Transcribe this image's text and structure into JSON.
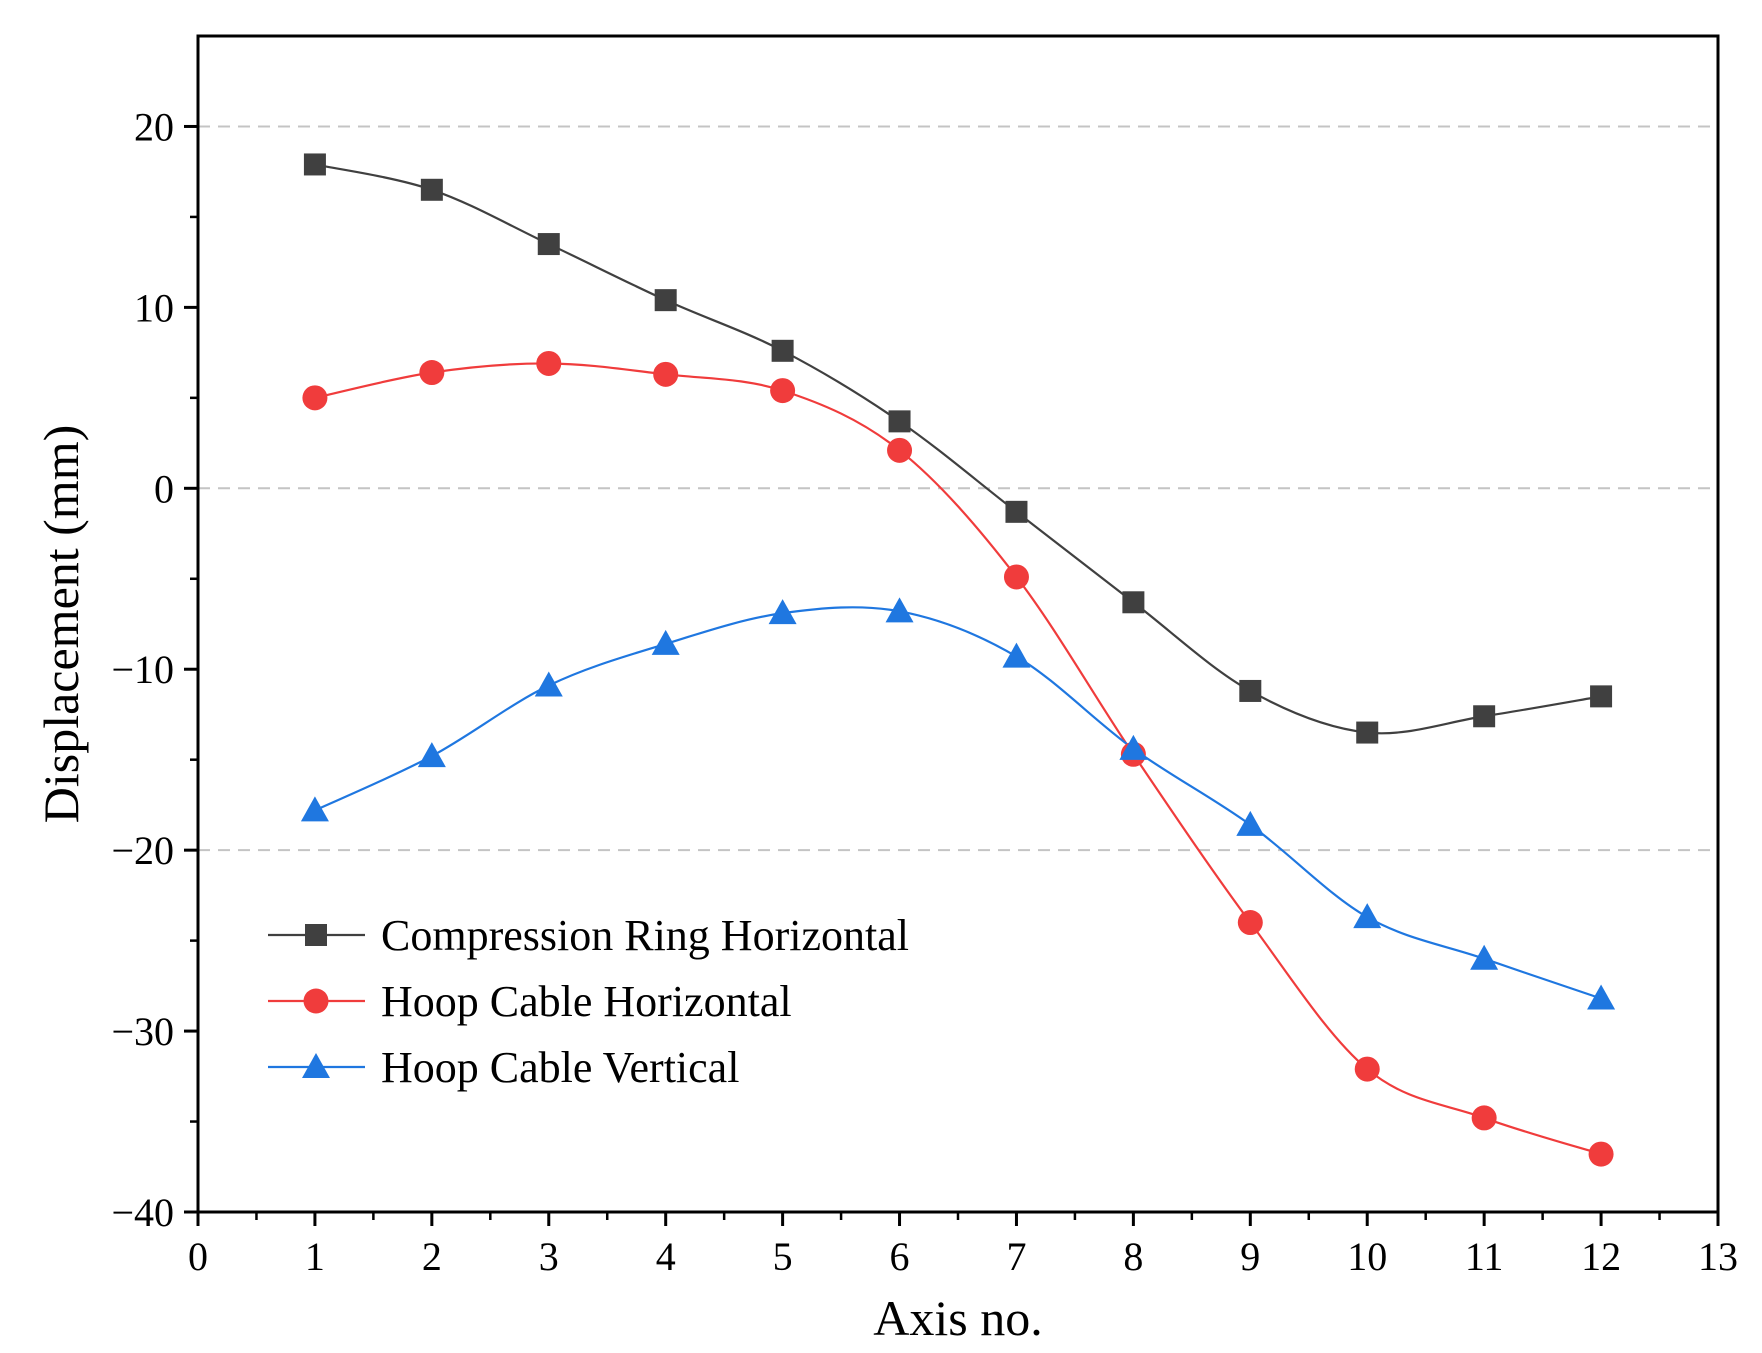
{
  "chart_data": {
    "type": "line",
    "xlabel": "Axis no.",
    "ylabel": "Displacement (mm)",
    "xlim": [
      0,
      13
    ],
    "ylim": [
      -40,
      25
    ],
    "xticks": [
      0,
      1,
      2,
      3,
      4,
      5,
      6,
      7,
      8,
      9,
      10,
      11,
      12,
      13
    ],
    "xtick_labels": [
      "0",
      "1",
      "2",
      "3",
      "4",
      "5",
      "6",
      "7",
      "8",
      "9",
      "10",
      "11",
      "12",
      "13"
    ],
    "yticks": [
      20,
      10,
      0,
      -10,
      -20,
      -30,
      -40
    ],
    "ytick_labels": [
      "20",
      "10",
      "0",
      "−10",
      "−20",
      "−30",
      "−40"
    ],
    "gridlines_y": [
      20,
      0,
      -20
    ],
    "legend_position": "lower-left",
    "x": [
      1,
      2,
      3,
      4,
      5,
      6,
      7,
      8,
      9,
      10,
      11,
      12
    ],
    "series": [
      {
        "name": "Compression Ring Horizontal",
        "marker": "square",
        "color": "#404040",
        "values": [
          17.9,
          16.5,
          13.5,
          10.4,
          7.6,
          3.7,
          -1.3,
          -6.3,
          -11.2,
          -13.5,
          -12.6,
          -11.5
        ]
      },
      {
        "name": "Hoop Cable Horizontal",
        "marker": "circle",
        "color": "#f03c3c",
        "values": [
          5.0,
          6.4,
          6.9,
          6.3,
          5.4,
          2.1,
          -4.9,
          -14.7,
          -24.0,
          -32.1,
          -34.8,
          -36.8
        ]
      },
      {
        "name": "Hoop Cable Vertical",
        "marker": "triangle",
        "color": "#1f77e0",
        "values": [
          -17.8,
          -14.8,
          -10.9,
          -8.6,
          -6.9,
          -6.8,
          -9.3,
          -14.4,
          -18.6,
          -23.7,
          -26.0,
          -28.2
        ]
      }
    ]
  }
}
